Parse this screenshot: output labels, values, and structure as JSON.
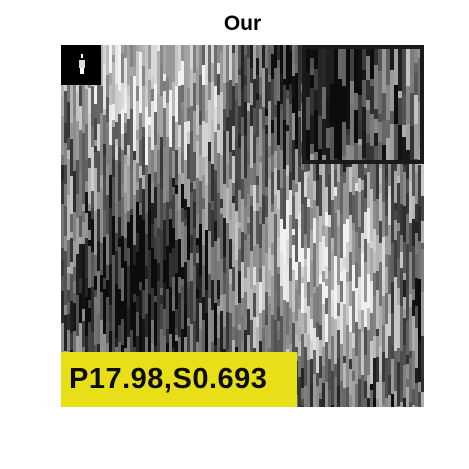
{
  "figure": {
    "title": "Our",
    "metric_label": "P17.98,S0.693"
  },
  "image": {
    "description_tone": "grayscale",
    "inset_border_color": "#1a1a1a",
    "label_background_color": "#e8df18",
    "label_text_color": "#0d0d0d"
  }
}
